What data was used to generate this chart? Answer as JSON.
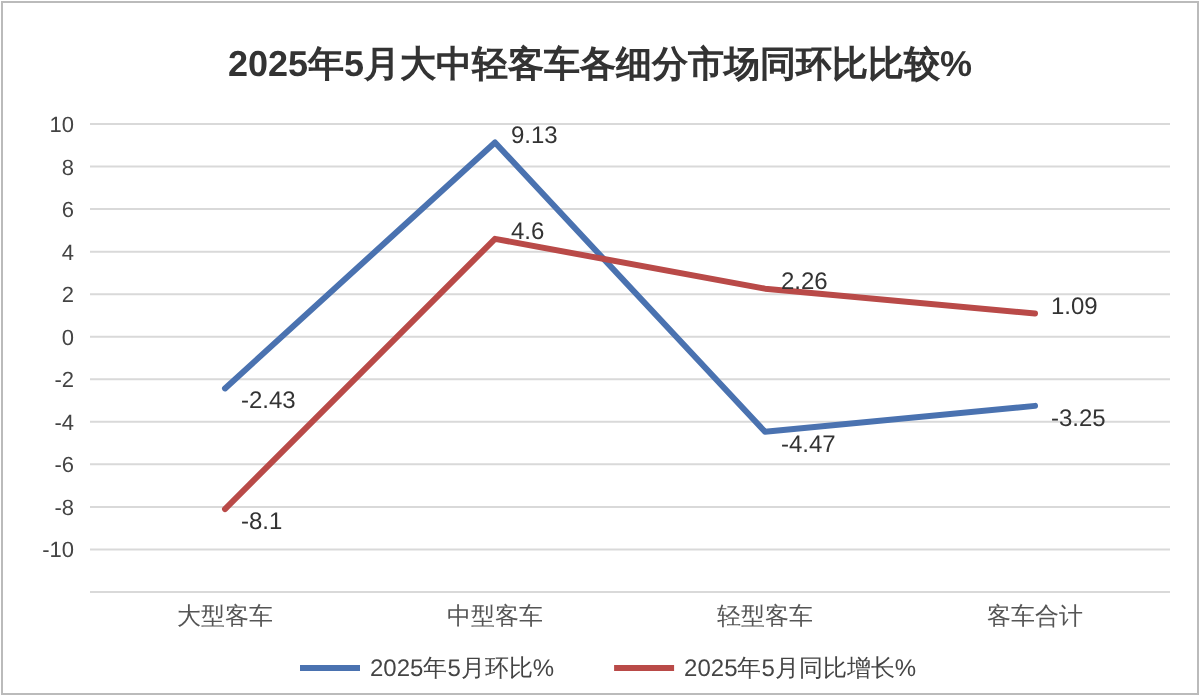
{
  "chart_data": {
    "type": "line",
    "title": "2025年5月大中轻客车各细分市场同环比比较%",
    "categories": [
      "大型客车",
      "中型客车",
      "轻型客车",
      "客车合计"
    ],
    "series": [
      {
        "name": "2025年5月环比%",
        "color": "#4a72b0",
        "values": [
          -2.43,
          9.13,
          -4.47,
          -3.25
        ]
      },
      {
        "name": "2025年5月同比增长%",
        "color": "#b94a48",
        "values": [
          -8.1,
          4.6,
          2.26,
          1.09
        ]
      }
    ],
    "ylim": [
      -12,
      10
    ],
    "yticks": [
      -10,
      -8,
      -6,
      -4,
      -2,
      0,
      2,
      4,
      6,
      8,
      10
    ],
    "grid": "y",
    "legend": "bottom",
    "marker": "none",
    "line_style": "solid",
    "data_labels": true
  }
}
